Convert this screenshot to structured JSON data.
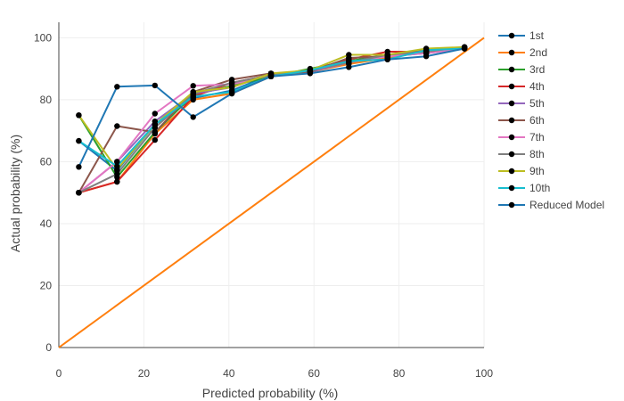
{
  "chart_data": {
    "type": "line",
    "xlabel": "Predicted probability (%)",
    "ylabel": "Actual probability (%)",
    "xlim": [
      0,
      100
    ],
    "ylim": [
      0,
      105
    ],
    "xticks": [
      "0",
      "20",
      "40",
      "60",
      "80",
      "100"
    ],
    "yticks": [
      "0",
      "20",
      "40",
      "60",
      "80",
      "100"
    ],
    "grid": true,
    "legend_position": "right",
    "markers": "black dots",
    "x": [
      4.7,
      13.7,
      22.6,
      31.6,
      40.7,
      49.9,
      59.1,
      68.2,
      77.3,
      86.4,
      95.4
    ],
    "series": [
      {
        "name": "1st",
        "color": "#1f77b4",
        "values": [
          66.7,
          57.1,
          72.0,
          80.5,
          83.0,
          88.0,
          89.5,
          92.5,
          94.0,
          95.0,
          97.0
        ]
      },
      {
        "name": "2nd",
        "color": "#ff7f0e",
        "values": [
          50.0,
          53.5,
          69.0,
          80.0,
          82.0,
          87.5,
          89.0,
          91.5,
          93.5,
          95.5,
          96.5
        ]
      },
      {
        "name": "3rd",
        "color": "#2ca02c",
        "values": [
          75.0,
          55.0,
          69.5,
          81.5,
          84.5,
          87.5,
          90.0,
          92.5,
          94.5,
          95.5,
          97.0
        ]
      },
      {
        "name": "4th",
        "color": "#d62728",
        "values": [
          50.0,
          53.5,
          67.0,
          81.0,
          85.5,
          88.0,
          89.5,
          93.0,
          95.5,
          95.5,
          96.5
        ]
      },
      {
        "name": "5th",
        "color": "#9467bd",
        "values": [
          50.0,
          60.0,
          73.0,
          82.0,
          84.0,
          88.5,
          89.0,
          92.0,
          94.5,
          95.0,
          96.5
        ]
      },
      {
        "name": "6th",
        "color": "#8c564b",
        "values": [
          50.0,
          71.5,
          69.5,
          82.5,
          86.5,
          88.5,
          89.0,
          93.5,
          94.0,
          96.0,
          96.5
        ]
      },
      {
        "name": "7th",
        "color": "#e377c2",
        "values": [
          50.0,
          60.0,
          75.5,
          84.5,
          85.0,
          88.0,
          89.5,
          92.0,
          94.0,
          95.0,
          96.5
        ]
      },
      {
        "name": "8th",
        "color": "#7f7f7f",
        "values": [
          50.0,
          56.0,
          71.0,
          82.0,
          85.5,
          88.0,
          89.5,
          92.0,
          94.5,
          95.5,
          97.0
        ]
      },
      {
        "name": "9th",
        "color": "#bcbd22",
        "values": [
          75.0,
          57.5,
          72.0,
          82.5,
          84.0,
          88.5,
          89.5,
          94.5,
          94.5,
          96.5,
          97.0
        ]
      },
      {
        "name": "10th",
        "color": "#17becf",
        "values": [
          66.7,
          58.5,
          72.0,
          81.0,
          82.5,
          87.5,
          89.5,
          92.5,
          93.0,
          96.0,
          96.5
        ]
      },
      {
        "name": "Reduced Model",
        "color": "#1f77b4",
        "values": [
          58.3,
          84.2,
          84.6,
          74.4,
          82.0,
          87.5,
          88.5,
          90.5,
          93.0,
          94.0,
          96.5
        ]
      }
    ],
    "reference_line": {
      "color": "#ff7f0e",
      "x": [
        0,
        100
      ],
      "y": [
        0,
        100
      ]
    }
  }
}
